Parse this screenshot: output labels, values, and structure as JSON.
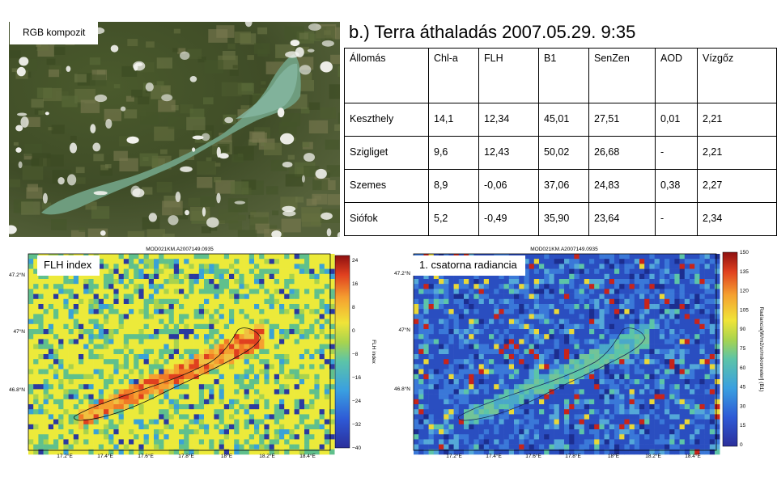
{
  "rgb_panel": {
    "label": "RGB kompozit"
  },
  "title": "b.) Terra áthaladás 2007.05.29. 9:35",
  "table": {
    "headers": [
      "Állomás",
      "Chl-a",
      "FLH",
      "B1",
      "SenZen",
      "AOD",
      "Vízgőz"
    ],
    "rows": [
      [
        "Keszthely",
        "14,1",
        "12,34",
        "45,01",
        "27,51",
        "0,01",
        "2,21"
      ],
      [
        "Szigliget",
        "9,6",
        "12,43",
        "50,02",
        "26,68",
        "-",
        "2,21"
      ],
      [
        "Szemes",
        "8,9",
        "-0,06",
        "37,06",
        "24,83",
        "0,38",
        "2,27"
      ],
      [
        "Siófok",
        "5,2",
        "-0,49",
        "35,90",
        "23,64",
        "-",
        "2,34"
      ]
    ]
  },
  "flh_map": {
    "label": "FLH index",
    "header": "MOD021KM.A2007149.0935",
    "colorbar_title": "FLH index",
    "colorbar_ticks": [
      "24",
      "16",
      "8",
      "0",
      "−8",
      "−16",
      "−24",
      "−32",
      "−40"
    ],
    "lat_ticks": [
      "47.2°N",
      "47°N",
      "46.8°N"
    ],
    "lon_ticks": [
      "17.2°E",
      "17.4°E",
      "17.6°E",
      "17.8°E",
      "18°E",
      "18.2°E",
      "18.4°E"
    ]
  },
  "rad_map": {
    "label": "1. csatorna radiancia",
    "header": "MOD021KM.A2007149.0935",
    "colorbar_title": "Radiancia[W/m2/sr/mikrometer] (B1)",
    "colorbar_ticks": [
      "150",
      "135",
      "120",
      "105",
      "90",
      "75",
      "60",
      "45",
      "30",
      "15",
      "0"
    ],
    "lat_ticks": [
      "47.2°N",
      "47°N",
      "46.8°N"
    ],
    "lon_ticks": [
      "17.2°E",
      "17.4°E",
      "17.6°E",
      "17.8°E",
      "18°E",
      "18.2°E",
      "18.4°E"
    ]
  }
}
